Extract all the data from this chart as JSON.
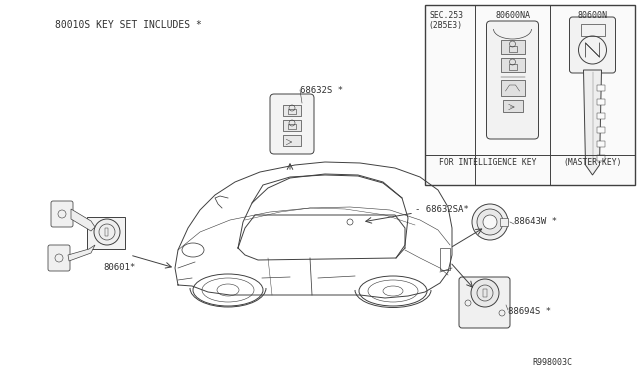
{
  "bg_color": "#ffffff",
  "line_color": "#404040",
  "text_color": "#303030",
  "header_text": "80010S KEY SET INCLUDES *",
  "ref_code": "R998003C",
  "labels": {
    "part1": "80601*",
    "part2": "68632S *",
    "part3": "- 68632SA*",
    "part4": "88643W *",
    "part5": "88694S *",
    "key_label1": "80600NA",
    "key_label2": "80600N",
    "sec_label1": "SEC.253",
    "sec_label2": "(2B5E3)",
    "intel_key": "FOR INTELLIGENCE KEY",
    "master_key": "(MASTER-KEY)"
  },
  "figsize": [
    6.4,
    3.72
  ],
  "dpi": 100
}
